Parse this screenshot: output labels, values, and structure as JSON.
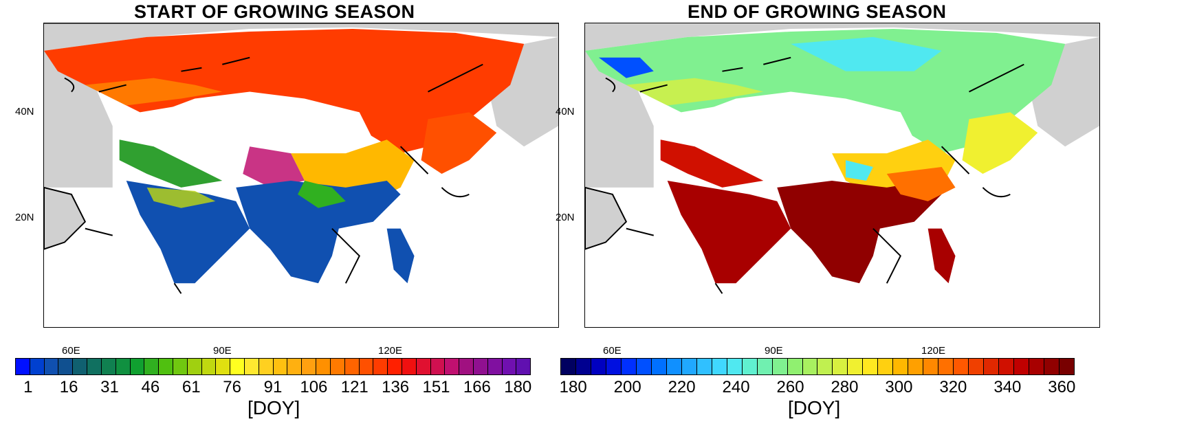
{
  "panels": [
    {
      "title": "START OF GROWING SEASON",
      "lat_labels": [
        "40N",
        "20N"
      ],
      "lon_labels": [
        "60E",
        "90E",
        "120E"
      ],
      "colorbar": {
        "ticks": [
          "1",
          "16",
          "31",
          "46",
          "61",
          "76",
          "91",
          "106",
          "121",
          "136",
          "151",
          "166",
          "180"
        ],
        "label": "[DOY]",
        "colors": [
          "#0010ff",
          "#0040d0",
          "#1050b0",
          "#105090",
          "#106070",
          "#107060",
          "#108050",
          "#109040",
          "#10a030",
          "#30b020",
          "#50c010",
          "#70c810",
          "#a0d010",
          "#c0d810",
          "#e0e010",
          "#ffff20",
          "#ffe830",
          "#ffd020",
          "#ffc010",
          "#ffb010",
          "#ffa010",
          "#ff9000",
          "#ff7a00",
          "#ff6400",
          "#ff5000",
          "#ff3c00",
          "#ff2000",
          "#f01010",
          "#e01030",
          "#d01050",
          "#c01070",
          "#a01080",
          "#901090",
          "#8010a0",
          "#7010b0",
          "#6010b0"
        ]
      }
    },
    {
      "title": "END OF GROWING SEASON",
      "lat_labels": [
        "40N",
        "20N"
      ],
      "lon_labels": [
        "60E",
        "90E",
        "120E"
      ],
      "colorbar": {
        "ticks": [
          "180",
          "200",
          "220",
          "240",
          "260",
          "280",
          "300",
          "320",
          "340",
          "360"
        ],
        "label": "[DOY]",
        "colors": [
          "#000060",
          "#000090",
          "#0000c0",
          "#0010e0",
          "#0030ff",
          "#0050ff",
          "#0070ff",
          "#1090ff",
          "#20a8ff",
          "#30c0ff",
          "#40d8ff",
          "#50e8f0",
          "#60f0d0",
          "#70f0b0",
          "#80f090",
          "#90f070",
          "#a8f060",
          "#c0f050",
          "#d8f040",
          "#f0f030",
          "#ffe820",
          "#ffd010",
          "#ffb800",
          "#ffa000",
          "#ff8800",
          "#ff7000",
          "#ff5800",
          "#f04000",
          "#e02800",
          "#d01000",
          "#c00000",
          "#a80000",
          "#900000",
          "#780000"
        ]
      }
    }
  ]
}
